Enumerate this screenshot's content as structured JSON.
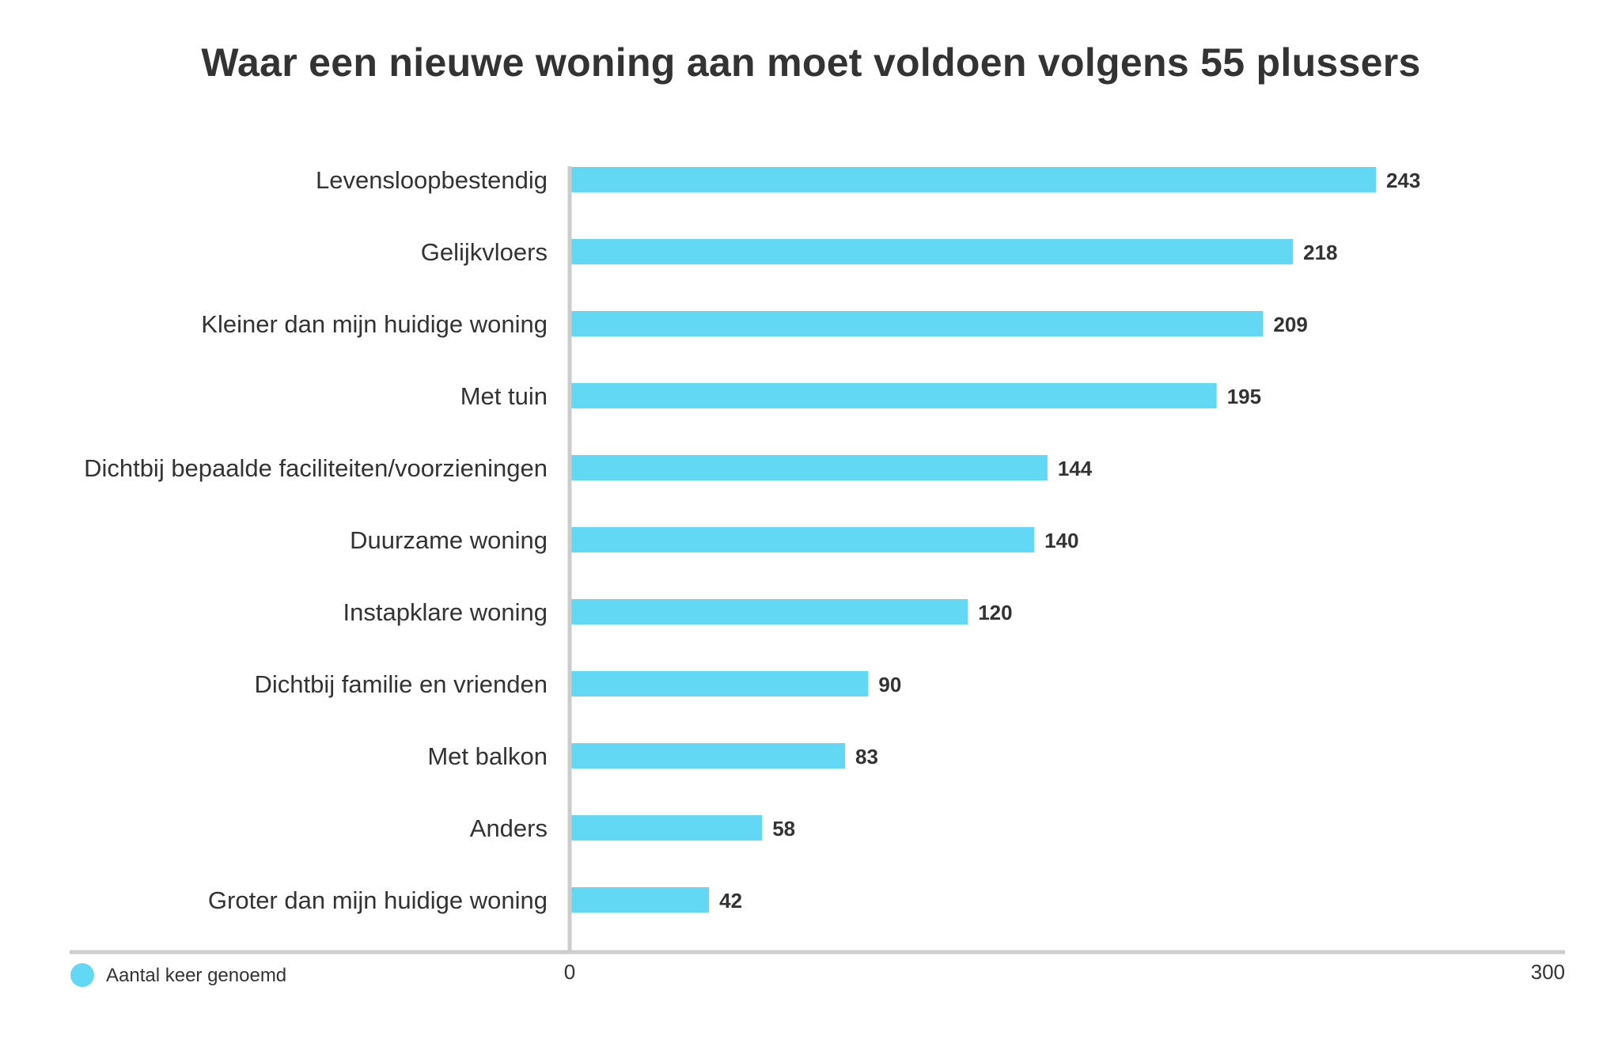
{
  "chart_data": {
    "type": "bar",
    "orientation": "horizontal",
    "title": "Waar een nieuwe woning aan moet voldoen volgens 55 plussers",
    "categories": [
      "Levensloopbestendig",
      "Gelijkvloers",
      "Kleiner dan mijn huidige woning",
      "Met tuin",
      "Dichtbij bepaalde faciliteiten/voorzieningen",
      "Duurzame woning",
      "Instapklare woning",
      "Dichtbij familie en vrienden",
      "Met balkon",
      "Anders",
      "Groter dan mijn huidige woning"
    ],
    "series": [
      {
        "name": "Aantal keer genoemd",
        "values": [
          243,
          218,
          209,
          195,
          144,
          140,
          120,
          90,
          83,
          58,
          42
        ],
        "color": "#62d8f5"
      }
    ],
    "xlim": [
      0,
      300
    ],
    "x_ticks": [
      "0",
      "300"
    ],
    "legend_position": "bottom-left",
    "axis_color": "#cccccc"
  }
}
